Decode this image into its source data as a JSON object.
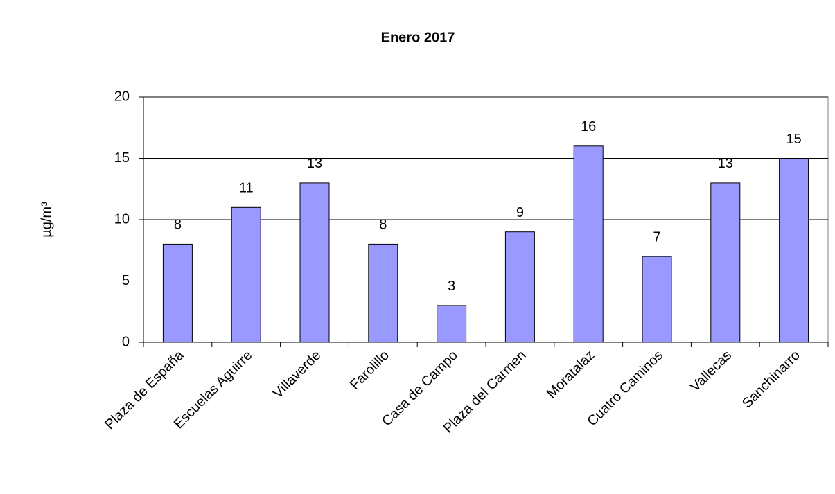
{
  "chart_data": {
    "type": "bar",
    "title": "Enero 2017",
    "y_label": "µg/m³",
    "categories": [
      "Plaza de España",
      "Escuelas Aguirre",
      "Villaverde",
      "Farolillo",
      "Casa de Campo",
      "Plaza del Carmen",
      "Moratalaz",
      "Cuatro Caminos",
      "Vallecas",
      "Sanchinarro"
    ],
    "values": [
      8,
      11,
      13,
      8,
      3,
      9,
      16,
      7,
      13,
      15
    ],
    "color": "#9999ff",
    "ylim": [
      0,
      20
    ],
    "yticks": [
      0,
      5,
      10,
      15,
      20
    ],
    "grid": true
  }
}
